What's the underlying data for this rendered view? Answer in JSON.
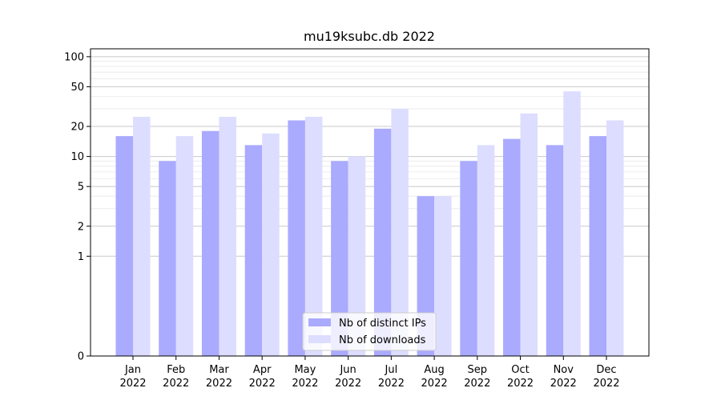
{
  "chart_data": {
    "type": "bar",
    "title": "mu19ksubc.db 2022",
    "xlabel": "",
    "ylabel": "",
    "y_scale": "symlog",
    "ylim": [
      0,
      120
    ],
    "y_ticks": [
      0,
      1,
      2,
      5,
      10,
      20,
      50,
      100
    ],
    "y_tick_labels": [
      "0",
      "1",
      "2",
      "5",
      "10",
      "20",
      "50",
      "100"
    ],
    "grid": true,
    "legend_position": "bottom-center",
    "categories": [
      [
        "Jan",
        "2022"
      ],
      [
        "Feb",
        "2022"
      ],
      [
        "Mar",
        "2022"
      ],
      [
        "Apr",
        "2022"
      ],
      [
        "May",
        "2022"
      ],
      [
        "Jun",
        "2022"
      ],
      [
        "Jul",
        "2022"
      ],
      [
        "Aug",
        "2022"
      ],
      [
        "Sep",
        "2022"
      ],
      [
        "Oct",
        "2022"
      ],
      [
        "Nov",
        "2022"
      ],
      [
        "Dec",
        "2022"
      ]
    ],
    "series": [
      {
        "name": "Nb of distinct IPs",
        "color": "#aaaaff",
        "values": [
          16,
          9,
          18,
          13,
          23,
          9,
          19,
          4,
          9,
          15,
          13,
          16
        ]
      },
      {
        "name": "Nb of downloads",
        "color": "#ddddff",
        "values": [
          25,
          16,
          25,
          17,
          25,
          10,
          30,
          4,
          13,
          27,
          45,
          23
        ]
      }
    ]
  }
}
